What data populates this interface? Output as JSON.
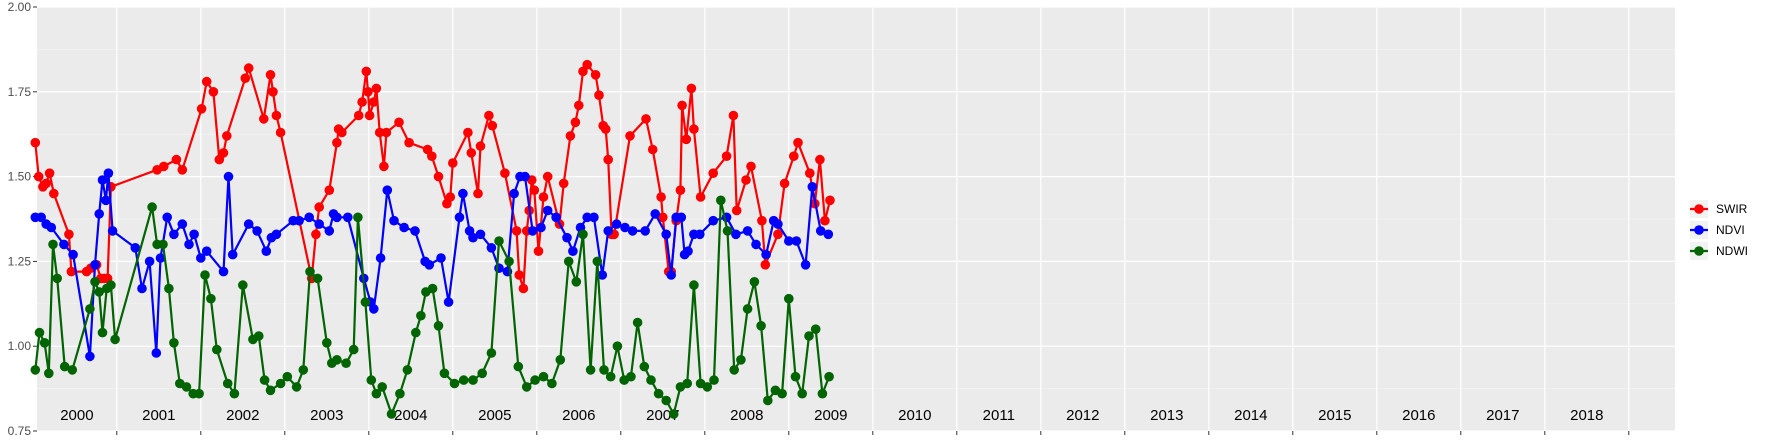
{
  "chart_data": {
    "type": "line",
    "title": "",
    "xlabel": "",
    "ylabel": "",
    "ylim": [
      0.75,
      2.0
    ],
    "yticks": [
      "0.75",
      "1.00",
      "1.25",
      "1.50",
      "1.75",
      "2.00"
    ],
    "x_range": [
      1999.55,
      2019.05
    ],
    "grid": true,
    "legend_position": "right",
    "year_labels": [
      "2000",
      "2001",
      "2002",
      "2003",
      "2004",
      "2005",
      "2006",
      "2007",
      "2008",
      "2009",
      "2010",
      "2011",
      "2012",
      "2013",
      "2014",
      "2015",
      "2016",
      "2017",
      "2018"
    ],
    "series": [
      {
        "name": "SWIR",
        "color": "#ff0000",
        "x": [
          1999.53,
          1999.57,
          1999.62,
          1999.66,
          1999.7,
          1999.75,
          1999.93,
          1999.96,
          2000.14,
          2000.19,
          2000.26,
          2000.31,
          2000.35,
          2000.39,
          2000.43,
          2000.98,
          2001.06,
          2001.21,
          2001.28,
          2001.51,
          2001.57,
          2001.65,
          2001.72,
          2001.77,
          2001.81,
          2002.03,
          2002.07,
          2002.25,
          2002.33,
          2002.36,
          2002.4,
          2002.45,
          2002.82,
          2002.87,
          2002.91,
          2003.03,
          2003.12,
          2003.14,
          2003.18,
          2003.38,
          2003.42,
          2003.47,
          2003.49,
          2003.51,
          2003.56,
          2003.59,
          2003.63,
          2003.68,
          2003.71,
          2003.86,
          2003.98,
          2004.2,
          2004.25,
          2004.33,
          2004.43,
          2004.47,
          2004.5,
          2004.68,
          2004.72,
          2004.8,
          2004.83,
          2004.93,
          2004.97,
          2005.12,
          2005.26,
          2005.29,
          2005.34,
          2005.38,
          2005.41,
          2005.44,
          2005.47,
          2005.52,
          2005.58,
          2005.63,
          2005.77,
          2005.82,
          2005.9,
          2005.96,
          2006.0,
          2006.05,
          2006.1,
          2006.2,
          2006.24,
          2006.29,
          2006.32,
          2006.35,
          2006.39,
          2006.42,
          2006.61,
          2006.8,
          2006.88,
          2006.98,
          2007.0,
          2007.07,
          2007.1,
          2007.16,
          2007.21,
          2007.23,
          2007.28,
          2007.34,
          2007.37,
          2007.45,
          2007.6,
          2007.76,
          2007.84,
          2007.88,
          2007.99,
          2008.05,
          2008.18,
          2008.22,
          2008.37,
          2008.45,
          2008.56,
          2008.61,
          2008.75,
          2008.81,
          2008.87,
          2008.93,
          2008.99
        ],
        "y": [
          1.6,
          1.5,
          1.47,
          1.48,
          1.51,
          1.45,
          1.33,
          1.22,
          1.22,
          1.23,
          1.24,
          1.2,
          1.2,
          1.2,
          1.47,
          1.52,
          1.53,
          1.55,
          1.52,
          1.7,
          1.78,
          1.75,
          1.55,
          1.57,
          1.62,
          1.79,
          1.82,
          1.67,
          1.8,
          1.75,
          1.68,
          1.63,
          1.2,
          1.33,
          1.41,
          1.46,
          1.6,
          1.64,
          1.63,
          1.68,
          1.72,
          1.81,
          1.75,
          1.68,
          1.72,
          1.76,
          1.63,
          1.53,
          1.63,
          1.66,
          1.6,
          1.58,
          1.56,
          1.5,
          1.42,
          1.44,
          1.54,
          1.63,
          1.57,
          1.45,
          1.59,
          1.68,
          1.65,
          1.51,
          1.34,
          1.21,
          1.17,
          1.34,
          1.4,
          1.49,
          1.46,
          1.28,
          1.44,
          1.5,
          1.36,
          1.48,
          1.62,
          1.66,
          1.71,
          1.81,
          1.83,
          1.8,
          1.74,
          1.65,
          1.64,
          1.55,
          1.33,
          1.33,
          1.62,
          1.67,
          1.58,
          1.44,
          1.38,
          1.22,
          1.22,
          1.37,
          1.46,
          1.71,
          1.61,
          1.76,
          1.64,
          1.44,
          1.51,
          1.56,
          1.68,
          1.4,
          1.49,
          1.53,
          1.37,
          1.24,
          1.33,
          1.48,
          1.56,
          1.6,
          1.51,
          1.42,
          1.55,
          1.37,
          1.43
        ]
      },
      {
        "name": "NDVI",
        "color": "#0000ff",
        "x": [
          1999.53,
          1999.6,
          1999.66,
          1999.72,
          1999.87,
          1999.98,
          2000.18,
          2000.24,
          2000.29,
          2000.33,
          2000.37,
          2000.4,
          2000.45,
          2000.72,
          2000.8,
          2000.89,
          2000.97,
          2001.02,
          2001.1,
          2001.18,
          2001.28,
          2001.36,
          2001.42,
          2001.5,
          2001.57,
          2001.77,
          2001.83,
          2001.88,
          2002.07,
          2002.17,
          2002.28,
          2002.34,
          2002.4,
          2002.6,
          2002.67,
          2002.79,
          2002.91,
          2003.03,
          2003.08,
          2003.12,
          2003.25,
          2003.44,
          2003.52,
          2003.56,
          2003.64,
          2003.72,
          2003.8,
          2003.92,
          2004.05,
          2004.17,
          2004.22,
          2004.36,
          2004.45,
          2004.58,
          2004.62,
          2004.7,
          2004.74,
          2004.83,
          2004.96,
          2005.05,
          2005.15,
          2005.23,
          2005.3,
          2005.36,
          2005.45,
          2005.55,
          2005.63,
          2005.73,
          2005.86,
          2005.93,
          2006.02,
          2006.1,
          2006.18,
          2006.28,
          2006.35,
          2006.45,
          2006.55,
          2006.64,
          2006.79,
          2006.91,
          2007.04,
          2007.1,
          2007.16,
          2007.22,
          2007.26,
          2007.3,
          2007.37,
          2007.44,
          2007.6,
          2007.76,
          2007.87,
          2008.01,
          2008.11,
          2008.23,
          2008.32,
          2008.37,
          2008.5,
          2008.59,
          2008.7,
          2008.78,
          2008.88,
          2008.97
        ],
        "y": [
          1.38,
          1.38,
          1.36,
          1.35,
          1.3,
          1.27,
          0.97,
          1.24,
          1.39,
          1.49,
          1.43,
          1.51,
          1.34,
          1.29,
          1.17,
          1.25,
          0.98,
          1.26,
          1.38,
          1.33,
          1.36,
          1.3,
          1.33,
          1.26,
          1.28,
          1.22,
          1.5,
          1.27,
          1.36,
          1.34,
          1.28,
          1.32,
          1.33,
          1.37,
          1.37,
          1.38,
          1.36,
          1.34,
          1.39,
          1.38,
          1.38,
          1.2,
          1.13,
          1.11,
          1.26,
          1.46,
          1.37,
          1.35,
          1.34,
          1.25,
          1.24,
          1.26,
          1.13,
          1.38,
          1.45,
          1.34,
          1.32,
          1.33,
          1.29,
          1.23,
          1.22,
          1.45,
          1.5,
          1.5,
          1.34,
          1.35,
          1.4,
          1.38,
          1.32,
          1.28,
          1.35,
          1.38,
          1.38,
          1.21,
          1.34,
          1.36,
          1.35,
          1.34,
          1.34,
          1.39,
          1.33,
          1.21,
          1.38,
          1.38,
          1.27,
          1.28,
          1.33,
          1.33,
          1.37,
          1.38,
          1.33,
          1.34,
          1.3,
          1.27,
          1.37,
          1.36,
          1.31,
          1.31,
          1.24,
          1.47,
          1.34,
          1.33
        ]
      },
      {
        "name": "NDWI",
        "color": "#006400",
        "x": [
          1999.53,
          1999.58,
          1999.64,
          1999.69,
          1999.74,
          1999.79,
          1999.88,
          1999.97,
          2000.18,
          2000.24,
          2000.29,
          2000.33,
          2000.38,
          2000.43,
          2000.48,
          2000.92,
          2000.98,
          2001.05,
          2001.12,
          2001.18,
          2001.25,
          2001.33,
          2001.41,
          2001.48,
          2001.55,
          2001.62,
          2001.69,
          2001.82,
          2001.9,
          2002.0,
          2002.12,
          2002.19,
          2002.26,
          2002.33,
          2002.45,
          2002.53,
          2002.64,
          2002.72,
          2002.8,
          2002.89,
          2003.0,
          2003.06,
          2003.12,
          2003.23,
          2003.32,
          2003.37,
          2003.46,
          2003.53,
          2003.59,
          2003.66,
          2003.77,
          2003.87,
          2003.96,
          2004.06,
          2004.12,
          2004.18,
          2004.26,
          2004.33,
          2004.4,
          2004.52,
          2004.63,
          2004.74,
          2004.85,
          2004.96,
          2005.05,
          2005.17,
          2005.28,
          2005.38,
          2005.48,
          2005.58,
          2005.68,
          2005.78,
          2005.88,
          2005.97,
          2006.05,
          2006.14,
          2006.22,
          2006.3,
          2006.38,
          2006.46,
          2006.54,
          2006.62,
          2006.7,
          2006.78,
          2006.86,
          2006.95,
          2007.04,
          2007.13,
          2007.21,
          2007.29,
          2007.37,
          2007.45,
          2007.53,
          2007.61,
          2007.69,
          2007.77,
          2007.85,
          2007.93,
          2008.01,
          2008.09,
          2008.17,
          2008.25,
          2008.34,
          2008.42,
          2008.5,
          2008.58,
          2008.66,
          2008.74,
          2008.82,
          2008.9,
          2008.98
        ],
        "y": [
          0.93,
          1.04,
          1.01,
          0.92,
          1.3,
          1.2,
          0.94,
          0.93,
          1.11,
          1.19,
          1.16,
          1.04,
          1.17,
          1.18,
          1.02,
          1.41,
          1.3,
          1.3,
          1.17,
          1.01,
          0.89,
          0.88,
          0.86,
          0.86,
          1.21,
          1.14,
          0.99,
          0.89,
          0.86,
          1.18,
          1.02,
          1.03,
          0.9,
          0.87,
          0.89,
          0.91,
          0.88,
          0.93,
          1.22,
          1.2,
          1.01,
          0.95,
          0.96,
          0.95,
          0.99,
          1.38,
          1.13,
          0.9,
          0.86,
          0.88,
          0.8,
          0.86,
          0.93,
          1.04,
          1.09,
          1.16,
          1.17,
          1.06,
          0.92,
          0.89,
          0.9,
          0.9,
          0.92,
          0.98,
          1.31,
          1.25,
          0.94,
          0.88,
          0.9,
          0.91,
          0.89,
          0.96,
          1.25,
          1.19,
          1.33,
          0.93,
          1.25,
          0.93,
          0.91,
          1.0,
          0.9,
          0.91,
          1.07,
          0.94,
          0.9,
          0.86,
          0.84,
          0.8,
          0.88,
          0.89,
          1.18,
          0.89,
          0.88,
          0.9,
          1.43,
          1.34,
          0.93,
          0.96,
          1.11,
          1.19,
          1.06,
          0.84,
          0.87,
          0.86,
          1.14,
          0.91,
          0.86,
          1.03,
          1.05,
          0.86,
          0.91
        ]
      }
    ]
  },
  "legend": {
    "items": [
      {
        "label": "SWIR",
        "color": "#ff0000"
      },
      {
        "label": "NDVI",
        "color": "#0000ff"
      },
      {
        "label": "NDWI",
        "color": "#006400"
      }
    ]
  }
}
